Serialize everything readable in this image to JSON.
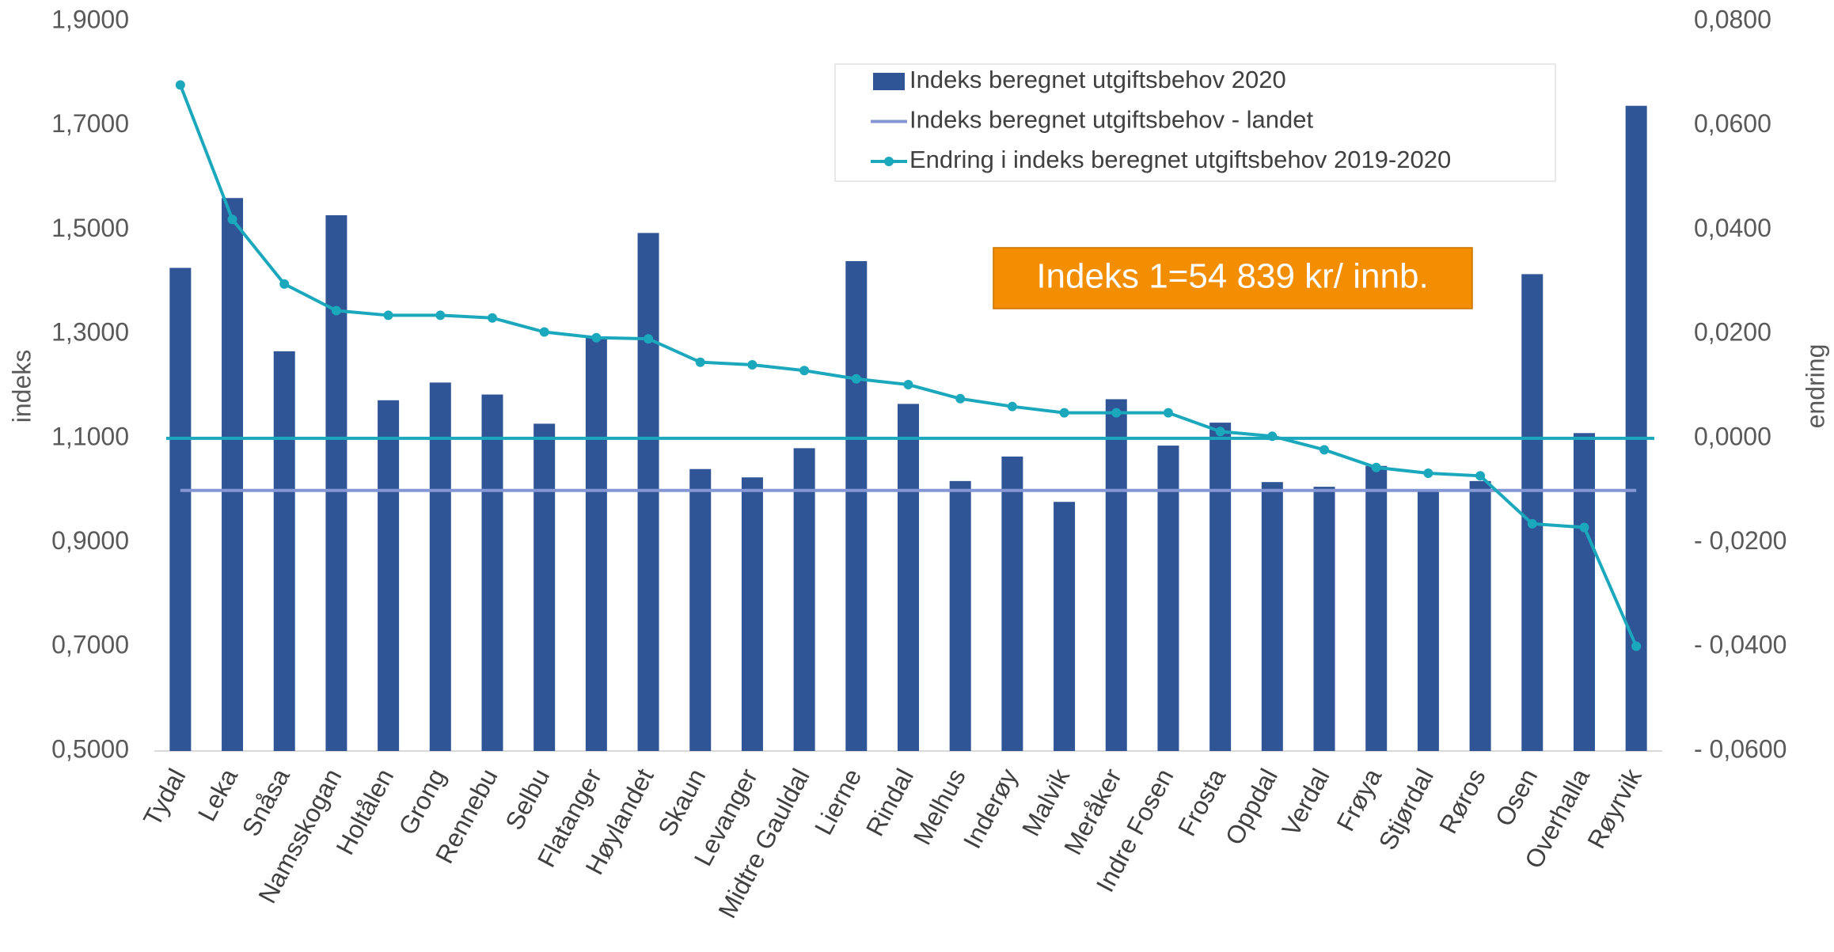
{
  "chart_data": {
    "type": "bar",
    "categories": [
      "Tydal",
      "Leka",
      "Snåsa",
      "Namsskogan",
      "Holtålen",
      "Grong",
      "Rennebu",
      "Selbu",
      "Flatanger",
      "Høylandet",
      "Skaun",
      "Levanger",
      "Midtre Gauldal",
      "Lierne",
      "Rindal",
      "Melhus",
      "Inderøy",
      "Malvik",
      "Meråker",
      "Indre Fosen",
      "Frosta",
      "Oppdal",
      "Verdal",
      "Frøya",
      "Stjørdal",
      "Røros",
      "Osen",
      "Overhalla",
      "Røyrvik"
    ],
    "series": [
      {
        "name": "Indeks beregnet utgiftsbehov 2020",
        "type": "bar",
        "color": "#2f5597",
        "values": [
          1.427,
          1.561,
          1.267,
          1.528,
          1.173,
          1.207,
          1.184,
          1.128,
          1.294,
          1.494,
          1.041,
          1.025,
          1.081,
          1.44,
          1.166,
          1.018,
          1.065,
          0.978,
          1.175,
          1.086,
          1.13,
          1.016,
          1.007,
          1.047,
          0.998,
          1.018,
          1.415,
          1.11,
          1.738
        ]
      },
      {
        "name": "Indeks beregnet utgiftsbehov - landet",
        "type": "line",
        "color": "#8497d4",
        "values": [
          1,
          1,
          1,
          1,
          1,
          1,
          1,
          1,
          1,
          1,
          1,
          1,
          1,
          1,
          1,
          1,
          1,
          1,
          1,
          1,
          1,
          1,
          1,
          1,
          1,
          1,
          1,
          1,
          1
        ]
      },
      {
        "name": "Endring i indeks beregnet utgiftsbehov 2019-2020",
        "type": "line",
        "axis": "y2",
        "markers": true,
        "color": "#1ba8bd",
        "values": [
          0.0678,
          0.042,
          0.0296,
          0.0245,
          0.0236,
          0.0236,
          0.0231,
          0.0204,
          0.0193,
          0.0191,
          0.0146,
          0.0141,
          0.013,
          0.0114,
          0.0103,
          0.0076,
          0.0061,
          0.0049,
          0.0049,
          0.0049,
          0.0013,
          0.0004,
          -0.0022,
          -0.0056,
          -0.0067,
          -0.0072,
          -0.0164,
          -0.0171,
          -0.0399
        ]
      }
    ],
    "ylabel": "indeks",
    "y2label": "endring",
    "annotation": "Indeks 1=54 839 kr/ innb.",
    "ylim": [
      0.5,
      1.9
    ],
    "yticks": [
      {
        "value": 0.5,
        "label": "0,5000"
      },
      {
        "value": 0.7,
        "label": "0,7000"
      },
      {
        "value": 0.9,
        "label": "0,9000"
      },
      {
        "value": 1.1,
        "label": "1,1000"
      },
      {
        "value": 1.3,
        "label": "1,3000"
      },
      {
        "value": 1.5,
        "label": "1,5000"
      },
      {
        "value": 1.7,
        "label": "1,7000"
      },
      {
        "value": 1.9,
        "label": "1,9000"
      }
    ],
    "y2lim": [
      -0.06,
      0.08
    ],
    "y2ticks": [
      {
        "value": -0.06,
        "label": "- 0,0600"
      },
      {
        "value": -0.04,
        "label": "- 0,0400"
      },
      {
        "value": -0.02,
        "label": "- 0,0200"
      },
      {
        "value": 0,
        "label": "0,0000"
      },
      {
        "value": 0.02,
        "label": "0,0200"
      },
      {
        "value": 0.04,
        "label": "0,0400"
      },
      {
        "value": 0.06,
        "label": "0,0600"
      },
      {
        "value": 0.08,
        "label": "0,0800"
      }
    ],
    "grid": false,
    "legend": "top-right"
  }
}
